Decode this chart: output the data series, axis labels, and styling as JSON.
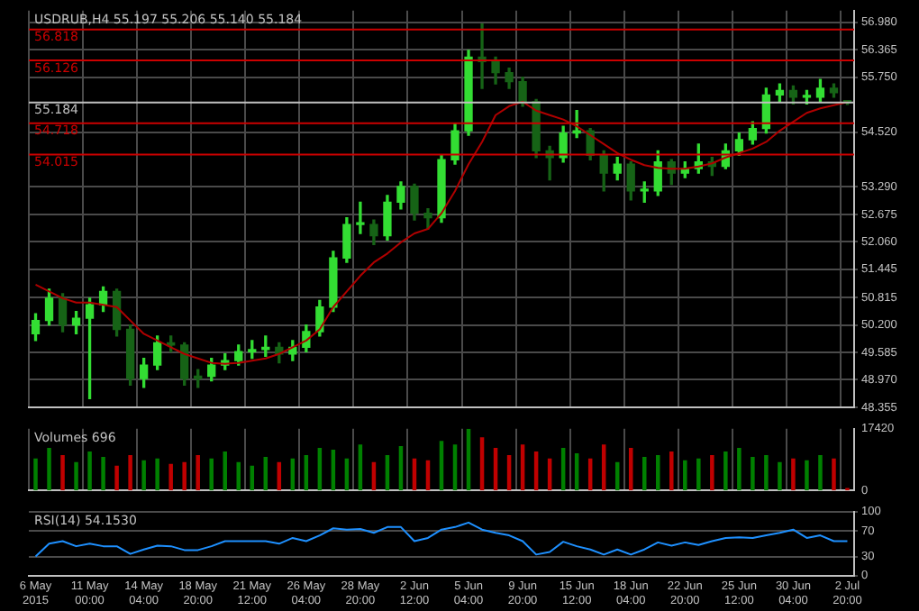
{
  "chart_data": [
    {
      "type": "candlestick",
      "title": "USDRUB,H4 55.197 55.206 55.140 55.184",
      "categories": [
        null,
        null,
        null,
        null,
        null,
        null,
        null,
        null,
        null,
        null,
        null,
        null,
        null,
        null,
        null,
        null,
        null,
        null,
        null,
        null,
        null,
        null,
        null,
        null,
        null,
        null,
        null,
        null,
        null,
        null,
        null,
        null,
        null,
        null,
        null,
        null,
        null,
        null,
        null,
        null,
        null,
        null,
        null,
        null,
        null,
        null,
        null,
        null,
        null,
        null,
        null,
        null,
        null,
        null,
        null,
        null,
        null,
        null,
        null,
        null,
        null
      ],
      "colors": [
        "#33dd33",
        "#33dd33",
        "#166316",
        "#33dd33",
        "#33dd33",
        "#33dd33",
        "#166316",
        "#166316",
        "#33dd33",
        "#33dd33",
        "#166316",
        "#166316",
        "#166316",
        "#33dd33",
        "#33dd33",
        "#33dd33",
        "#33dd33",
        "#33dd33",
        "#166316",
        "#33dd33",
        "#33dd33",
        "#33dd33",
        "#33dd33",
        "#33dd33",
        "#33dd33",
        "#166316",
        "#33dd33",
        "#33dd33",
        "#166316",
        "#166316",
        "#33dd33",
        "#33dd33",
        "#33dd33",
        "#166316",
        "#166316",
        "#166316",
        "#166316",
        "#166316",
        "#166316",
        "#33dd33",
        "#33dd33",
        "#166316",
        "#166316",
        "#33dd33",
        "#166316",
        "#33dd33",
        "#33dd33",
        "#166316",
        "#33dd33",
        "#33dd33",
        "#166316",
        "#33dd33",
        "#33dd33",
        "#33dd33",
        "#33dd33",
        "#33dd33",
        "#166316",
        "#33dd33",
        "#33dd33",
        "#166316",
        "#166316"
      ],
      "ohlc": [
        [
          50.0,
          50.45,
          49.85,
          50.3
        ],
        [
          50.3,
          51.0,
          50.2,
          50.8
        ],
        [
          50.8,
          50.9,
          50.05,
          50.2
        ],
        [
          50.2,
          50.5,
          50.0,
          50.35
        ],
        [
          50.35,
          50.8,
          48.55,
          50.65
        ],
        [
          50.65,
          51.05,
          50.5,
          50.95
        ],
        [
          50.95,
          51.0,
          49.95,
          50.1
        ],
        [
          50.1,
          50.2,
          48.85,
          49.0
        ],
        [
          49.0,
          49.45,
          48.8,
          49.3
        ],
        [
          49.3,
          49.95,
          49.2,
          49.8
        ],
        [
          49.8,
          49.95,
          49.6,
          49.75
        ],
        [
          49.75,
          49.8,
          48.85,
          49.0
        ],
        [
          49.0,
          49.2,
          48.8,
          49.05
        ],
        [
          49.05,
          49.45,
          48.95,
          49.3
        ],
        [
          49.3,
          49.55,
          49.2,
          49.4
        ],
        [
          49.4,
          49.75,
          49.3,
          49.6
        ],
        [
          49.6,
          49.85,
          49.45,
          49.65
        ],
        [
          49.65,
          49.95,
          49.5,
          49.7
        ],
        [
          49.7,
          49.8,
          49.35,
          49.55
        ],
        [
          49.55,
          49.85,
          49.4,
          49.7
        ],
        [
          49.7,
          50.2,
          49.6,
          50.05
        ],
        [
          50.05,
          50.75,
          49.95,
          50.6
        ],
        [
          50.6,
          51.85,
          50.5,
          51.7
        ],
        [
          51.7,
          52.6,
          51.6,
          52.45
        ],
        [
          52.45,
          52.95,
          52.25,
          52.45
        ],
        [
          52.45,
          52.55,
          52.0,
          52.2
        ],
        [
          52.2,
          53.1,
          52.1,
          52.95
        ],
        [
          52.95,
          53.4,
          52.8,
          53.3
        ],
        [
          53.3,
          53.35,
          52.55,
          52.7
        ],
        [
          52.7,
          52.8,
          52.35,
          52.6
        ],
        [
          52.6,
          54.0,
          52.5,
          53.9
        ],
        [
          53.9,
          54.7,
          53.8,
          54.55
        ],
        [
          54.55,
          56.35,
          54.45,
          56.2
        ],
        [
          56.2,
          56.94,
          55.5,
          56.1
        ],
        [
          56.1,
          56.2,
          55.6,
          55.85
        ],
        [
          55.85,
          55.95,
          55.5,
          55.65
        ],
        [
          55.65,
          55.75,
          55.1,
          55.2
        ],
        [
          55.2,
          55.25,
          53.95,
          54.1
        ],
        [
          54.1,
          54.2,
          53.45,
          53.95
        ],
        [
          53.95,
          54.65,
          53.85,
          54.5
        ],
        [
          54.5,
          55.0,
          54.4,
          54.55
        ],
        [
          54.55,
          54.6,
          53.9,
          54.0
        ],
        [
          54.0,
          54.1,
          53.2,
          53.6
        ],
        [
          53.6,
          53.95,
          53.45,
          53.8
        ],
        [
          53.8,
          53.85,
          53.0,
          53.2
        ],
        [
          53.2,
          53.4,
          52.95,
          53.2
        ],
        [
          53.2,
          54.1,
          53.1,
          53.85
        ],
        [
          53.85,
          53.9,
          53.35,
          53.6
        ],
        [
          53.6,
          53.85,
          53.5,
          53.7
        ],
        [
          53.7,
          54.25,
          53.6,
          53.85
        ],
        [
          53.85,
          53.95,
          53.55,
          53.75
        ],
        [
          53.75,
          54.25,
          53.7,
          54.1
        ],
        [
          54.1,
          54.5,
          54.0,
          54.35
        ],
        [
          54.35,
          54.75,
          54.25,
          54.6
        ],
        [
          54.6,
          55.5,
          54.5,
          55.35
        ],
        [
          55.35,
          55.6,
          55.2,
          55.45
        ],
        [
          55.45,
          55.55,
          55.15,
          55.3
        ],
        [
          55.3,
          55.45,
          55.15,
          55.3
        ],
        [
          55.3,
          55.7,
          55.2,
          55.5
        ],
        [
          55.5,
          55.6,
          55.3,
          55.4
        ],
        [
          55.197,
          55.206,
          55.14,
          55.184
        ]
      ],
      "series": [
        {
          "type": "line",
          "color": "#b00000",
          "values": [
            51.1,
            50.95,
            50.8,
            50.7,
            50.7,
            50.65,
            50.6,
            50.3,
            50.0,
            49.85,
            49.7,
            49.55,
            49.45,
            49.35,
            49.33,
            49.35,
            49.4,
            49.45,
            49.55,
            49.7,
            49.85,
            50.1,
            50.6,
            50.95,
            51.3,
            51.6,
            51.8,
            52.05,
            52.25,
            52.35,
            52.7,
            53.2,
            53.8,
            54.3,
            54.9,
            55.1,
            55.2,
            55.0,
            54.9,
            54.8,
            54.65,
            54.45,
            54.25,
            54.05,
            53.9,
            53.78,
            53.72,
            53.7,
            53.7,
            53.75,
            53.82,
            53.95,
            54.05,
            54.15,
            54.3,
            54.55,
            54.75,
            54.95,
            55.05,
            55.12,
            55.19
          ]
        }
      ],
      "ylim": [
        48.35,
        57.24
      ],
      "yticks": [
        {
          "value": 48.355,
          "label": "48.355"
        },
        {
          "value": 48.97,
          "label": "48.970"
        },
        {
          "value": 49.585,
          "label": "49.585"
        },
        {
          "value": 50.2,
          "label": "50.200"
        },
        {
          "value": 50.815,
          "label": "50.815"
        },
        {
          "value": 51.445,
          "label": "51.445"
        },
        {
          "value": 52.06,
          "label": "52.060"
        },
        {
          "value": 52.675,
          "label": "52.675"
        },
        {
          "value": 53.29,
          "label": "53.290"
        },
        {
          "value": 54.52,
          "label": "54.520"
        },
        {
          "value": 55.75,
          "label": "55.750"
        },
        {
          "value": 56.365,
          "label": "56.365"
        },
        {
          "value": 56.98,
          "label": "56.980"
        }
      ],
      "ref_lines": [
        {
          "axis": "y",
          "value": 56.818,
          "label": "56.818",
          "color": "#cc0000"
        },
        {
          "axis": "y",
          "value": 56.126,
          "label": "56.126",
          "color": "#cc0000"
        },
        {
          "axis": "y",
          "value": 54.718,
          "label": "54.718",
          "color": "#cc0000"
        },
        {
          "axis": "y",
          "value": 54.015,
          "label": "54.015",
          "color": "#cc0000"
        },
        {
          "axis": "y",
          "value": 55.184,
          "label": "55.184",
          "color": "#c0c0c0"
        }
      ],
      "grid": true,
      "tick_labels": "y"
    },
    {
      "type": "bar",
      "title": "Volumes 696",
      "categories": [
        null,
        null,
        null,
        null,
        null,
        null,
        null,
        null,
        null,
        null,
        null,
        null,
        null,
        null,
        null,
        null,
        null,
        null,
        null,
        null,
        null,
        null,
        null,
        null,
        null,
        null,
        null,
        null,
        null,
        null,
        null,
        null,
        null,
        null,
        null,
        null,
        null,
        null,
        null,
        null,
        null,
        null,
        null,
        null,
        null,
        null,
        null,
        null,
        null,
        null,
        null,
        null,
        null,
        null,
        null,
        null,
        null,
        null,
        null,
        null,
        null
      ],
      "values": [
        9000,
        12000,
        10000,
        8000,
        11000,
        9500,
        7000,
        10000,
        8500,
        9000,
        7500,
        8000,
        10000,
        9000,
        11000,
        8000,
        7000,
        9500,
        8000,
        9000,
        10000,
        12000,
        11500,
        9000,
        13000,
        8000,
        10000,
        12500,
        9000,
        8500,
        14000,
        13000,
        17420,
        15000,
        12000,
        10000,
        13000,
        11000,
        9000,
        12000,
        10500,
        9000,
        13000,
        8000,
        12000,
        9500,
        10000,
        11000,
        8500,
        9000,
        10000,
        11000,
        12000,
        9500,
        10000,
        8000,
        9000,
        8500,
        10000,
        9000,
        696
      ],
      "colors": [
        "#008000",
        "#008000",
        "#c00000",
        "#008000",
        "#008000",
        "#008000",
        "#c00000",
        "#c00000",
        "#008000",
        "#008000",
        "#c00000",
        "#c00000",
        "#c00000",
        "#008000",
        "#008000",
        "#008000",
        "#008000",
        "#008000",
        "#c00000",
        "#008000",
        "#008000",
        "#008000",
        "#008000",
        "#008000",
        "#008000",
        "#c00000",
        "#008000",
        "#008000",
        "#c00000",
        "#c00000",
        "#008000",
        "#008000",
        "#008000",
        "#c00000",
        "#c00000",
        "#c00000",
        "#c00000",
        "#c00000",
        "#c00000",
        "#008000",
        "#008000",
        "#c00000",
        "#c00000",
        "#008000",
        "#c00000",
        "#008000",
        "#008000",
        "#c00000",
        "#008000",
        "#008000",
        "#c00000",
        "#008000",
        "#008000",
        "#008000",
        "#008000",
        "#008000",
        "#c00000",
        "#008000",
        "#008000",
        "#c00000",
        "#c00000"
      ],
      "ylim": [
        0,
        17420
      ],
      "yticks": [
        0,
        17420
      ],
      "grid": "x",
      "tick_labels": "y"
    },
    {
      "type": "line",
      "title": "RSI(14) 54.1530",
      "color": "#1e90ff",
      "categories": [
        "6 May 2015",
        null,
        null,
        null,
        "11 May 00:00",
        null,
        null,
        null,
        "14 May 04:00",
        null,
        null,
        null,
        "18 May 20:00",
        null,
        null,
        null,
        "21 May 12:00",
        null,
        null,
        null,
        "26 May 04:00",
        null,
        null,
        null,
        "28 May 20:00",
        null,
        null,
        null,
        "2 Jun 12:00",
        null,
        null,
        null,
        "5 Jun 04:00",
        null,
        null,
        null,
        "9 Jun 20:00",
        null,
        null,
        null,
        "15 Jun 12:00",
        null,
        null,
        null,
        "18 Jun 04:00",
        null,
        null,
        null,
        "22 Jun 20:00",
        null,
        null,
        null,
        "25 Jun 12:00",
        null,
        null,
        null,
        "30 Jun 04:00",
        null,
        null,
        null,
        "2 Jul 20:00"
      ],
      "values": [
        30,
        50,
        54,
        46,
        50,
        46,
        46,
        34,
        41,
        47,
        46,
        40,
        40,
        46,
        54,
        54,
        54,
        54,
        50,
        59,
        54,
        63,
        74,
        72,
        73,
        67,
        76,
        76,
        54,
        59,
        72,
        76,
        83,
        72,
        67,
        63,
        54,
        33,
        37,
        53,
        46,
        41,
        33,
        41,
        33,
        41,
        52,
        47,
        52,
        48,
        54,
        59,
        60,
        59,
        63,
        67,
        72,
        59,
        63,
        54,
        54
      ],
      "ylim": [
        0,
        100
      ],
      "yticks": [
        0,
        30,
        70,
        100
      ],
      "grid": "y"
    }
  ]
}
